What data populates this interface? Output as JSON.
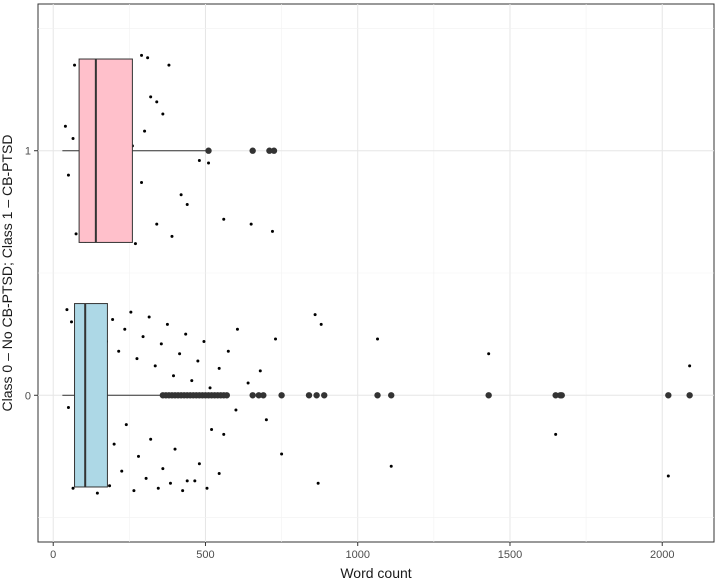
{
  "chart_data": {
    "type": "boxplot",
    "xlabel": "Word count",
    "ylabel": "Class 0 – No CB-PTSD; Class 1 – CB-PTSD",
    "xlim": [
      -50,
      2170
    ],
    "ylim": [
      -0.6,
      1.6
    ],
    "x_ticks": [
      0,
      500,
      1000,
      1500,
      2000
    ],
    "y_ticks": [
      0,
      1
    ],
    "grid": true,
    "orientation": "horizontal",
    "series": [
      {
        "category": 1,
        "fill": "#ffc0cb",
        "q1": 85,
        "median": 140,
        "q3": 260,
        "whisker_low": 30,
        "whisker_high": 510,
        "outliers": [
          510,
          655,
          710,
          725
        ]
      },
      {
        "category": 0,
        "fill": "#add8e6",
        "q1": 70,
        "median": 105,
        "q3": 178,
        "whisker_low": 30,
        "whisker_high": 360,
        "outliers": [
          360,
          370,
          380,
          390,
          400,
          410,
          420,
          430,
          440,
          450,
          460,
          470,
          480,
          490,
          500,
          510,
          520,
          530,
          540,
          550,
          560,
          570,
          655,
          675,
          690,
          750,
          840,
          865,
          890,
          1065,
          1110,
          1430,
          1650,
          1665,
          1670,
          2020,
          2090
        ]
      }
    ],
    "jitter_points": [
      [
        70,
        1.35
      ],
      [
        120,
        1.28
      ],
      [
        160,
        1.33
      ],
      [
        200,
        1.25
      ],
      [
        230,
        1.3
      ],
      [
        250,
        1.36
      ],
      [
        290,
        1.39
      ],
      [
        310,
        1.38
      ],
      [
        340,
        1.2
      ],
      [
        380,
        1.35
      ],
      [
        40,
        1.1
      ],
      [
        65,
        1.05
      ],
      [
        100,
        1.15
      ],
      [
        130,
        1.12
      ],
      [
        170,
        1.18
      ],
      [
        220,
        1.08
      ],
      [
        260,
        1.02
      ],
      [
        320,
        1.22
      ],
      [
        300,
        1.08
      ],
      [
        360,
        1.15
      ],
      [
        50,
        0.9
      ],
      [
        90,
        0.85
      ],
      [
        140,
        0.8
      ],
      [
        190,
        0.92
      ],
      [
        240,
        0.75
      ],
      [
        290,
        0.87
      ],
      [
        340,
        0.7
      ],
      [
        390,
        0.65
      ],
      [
        420,
        0.82
      ],
      [
        440,
        0.78
      ],
      [
        480,
        0.96
      ],
      [
        510,
        0.95
      ],
      [
        650,
        0.7
      ],
      [
        720,
        0.67
      ],
      [
        560,
        0.72
      ],
      [
        75,
        0.66
      ],
      [
        105,
        0.63
      ],
      [
        155,
        0.68
      ],
      [
        205,
        0.71
      ],
      [
        270,
        0.62
      ],
      [
        45,
        0.35
      ],
      [
        60,
        0.3
      ],
      [
        80,
        0.25
      ],
      [
        95,
        0.33
      ],
      [
        115,
        0.2
      ],
      [
        135,
        0.28
      ],
      [
        150,
        0.36
      ],
      [
        175,
        0.22
      ],
      [
        195,
        0.31
      ],
      [
        215,
        0.18
      ],
      [
        235,
        0.27
      ],
      [
        255,
        0.34
      ],
      [
        275,
        0.15
      ],
      [
        295,
        0.24
      ],
      [
        315,
        0.32
      ],
      [
        335,
        0.12
      ],
      [
        355,
        0.21
      ],
      [
        375,
        0.29
      ],
      [
        395,
        0.08
      ],
      [
        415,
        0.17
      ],
      [
        435,
        0.25
      ],
      [
        455,
        0.06
      ],
      [
        475,
        0.14
      ],
      [
        495,
        0.22
      ],
      [
        515,
        0.03
      ],
      [
        545,
        0.11
      ],
      [
        575,
        0.18
      ],
      [
        605,
        0.27
      ],
      [
        640,
        0.05
      ],
      [
        680,
        0.1
      ],
      [
        730,
        0.23
      ],
      [
        860,
        0.33
      ],
      [
        880,
        0.29
      ],
      [
        1065,
        0.23
      ],
      [
        1430,
        0.17
      ],
      [
        2090,
        0.12
      ],
      [
        50,
        -0.05
      ],
      [
        85,
        -0.1
      ],
      [
        120,
        -0.15
      ],
      [
        160,
        -0.08
      ],
      [
        200,
        -0.2
      ],
      [
        240,
        -0.12
      ],
      [
        280,
        -0.25
      ],
      [
        320,
        -0.18
      ],
      [
        360,
        -0.3
      ],
      [
        400,
        -0.22
      ],
      [
        440,
        -0.35
      ],
      [
        480,
        -0.28
      ],
      [
        520,
        -0.14
      ],
      [
        560,
        -0.16
      ],
      [
        600,
        -0.06
      ],
      [
        700,
        -0.1
      ],
      [
        750,
        -0.24
      ],
      [
        870,
        -0.36
      ],
      [
        1110,
        -0.29
      ],
      [
        1650,
        -0.16
      ],
      [
        2020,
        -0.33
      ],
      [
        65,
        -0.38
      ],
      [
        105,
        -0.33
      ],
      [
        145,
        -0.4
      ],
      [
        185,
        -0.37
      ],
      [
        225,
        -0.31
      ],
      [
        265,
        -0.39
      ],
      [
        305,
        -0.34
      ],
      [
        345,
        -0.38
      ],
      [
        385,
        -0.36
      ],
      [
        425,
        -0.39
      ],
      [
        465,
        -0.35
      ],
      [
        505,
        -0.38
      ],
      [
        545,
        -0.32
      ]
    ]
  }
}
